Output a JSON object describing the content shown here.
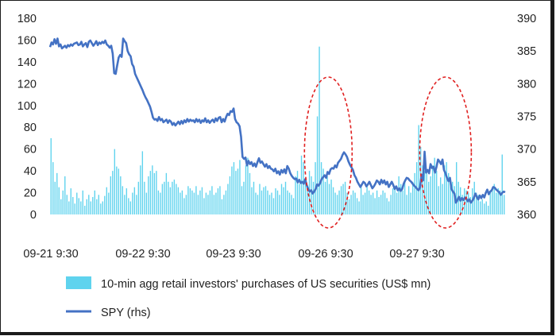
{
  "chart_data": {
    "type": "bar",
    "title": "",
    "x_ticks": [
      "09-21 9:30",
      "09-22 9:30",
      "09-23 9:30",
      "09-26 9:30",
      "09-27 9:30"
    ],
    "y_left": {
      "ticks": [
        0,
        20,
        40,
        60,
        80,
        100,
        120,
        140,
        160,
        180
      ],
      "range": [
        0,
        180
      ]
    },
    "y_right": {
      "ticks": [
        360,
        365,
        370,
        375,
        380,
        385,
        390
      ],
      "range": [
        360,
        390
      ]
    },
    "grid": false,
    "legend_position": "bottom",
    "colors": {
      "bars": "#5fd3ee",
      "line": "#4472c4",
      "annotation": "#e02020"
    },
    "series": [
      {
        "name": "10-min agg retail investors' purchases of US securities (US$ mn)",
        "type": "bar",
        "axis": "left",
        "values": [
          70,
          48,
          30,
          38,
          25,
          14,
          22,
          35,
          18,
          12,
          24,
          16,
          10,
          20,
          15,
          12,
          22,
          8,
          14,
          18,
          12,
          16,
          22,
          14,
          18,
          10,
          12,
          17,
          25,
          20,
          35,
          40,
          60,
          44,
          42,
          35,
          26,
          18,
          24,
          15,
          12,
          20,
          25,
          18,
          30,
          45,
          58,
          30,
          20,
          35,
          40,
          45,
          38,
          40,
          22,
          20,
          28,
          30,
          38,
          30,
          25,
          30,
          32,
          28,
          25,
          20,
          22,
          15,
          18,
          26,
          24,
          22,
          20,
          26,
          18,
          22,
          25,
          15,
          20,
          18,
          22,
          26,
          18,
          20,
          24,
          26,
          14,
          18,
          22,
          28,
          35,
          44,
          48,
          40,
          42,
          50,
          26,
          30,
          45,
          52,
          38,
          25,
          30,
          20,
          18,
          28,
          22,
          25,
          26,
          22,
          18,
          20,
          15,
          24,
          22,
          18,
          28,
          25,
          30,
          22,
          20,
          18,
          15,
          35,
          40,
          28,
          54,
          48,
          32,
          25,
          40,
          35,
          30,
          48,
          90,
          154,
          48,
          42,
          30,
          35,
          28,
          32,
          25,
          20,
          18,
          22,
          26,
          28,
          30,
          20,
          14,
          18,
          22,
          20,
          15,
          12,
          25,
          18,
          20,
          26,
          22,
          18,
          20,
          15,
          22,
          16,
          18,
          22,
          20,
          15,
          12,
          18,
          24,
          26,
          20,
          35,
          28,
          22,
          30,
          18,
          26,
          20,
          30,
          38,
          48,
          82,
          62,
          45,
          40,
          38,
          30,
          35,
          45,
          52,
          40,
          26,
          34,
          28,
          45,
          48,
          38,
          28,
          30,
          26,
          48,
          30,
          25,
          18,
          24,
          22,
          20,
          16,
          24,
          30,
          20,
          18,
          12,
          14,
          10,
          12,
          8,
          20,
          25,
          28,
          20,
          24,
          22,
          55,
          18
        ]
      },
      {
        "name": "SPY (rhs)",
        "type": "line",
        "axis": "right",
        "values": [
          385.6,
          386.3,
          386.0,
          386.8,
          386.1,
          386.9,
          385.7,
          386.0,
          385.4,
          385.6,
          385.8,
          385.5,
          385.9,
          385.7,
          386.0,
          385.8,
          386.1,
          386.2,
          386.3,
          385.9,
          386.0,
          386.4,
          385.7,
          386.0,
          386.2,
          385.6,
          386.4,
          386.6,
          386.2,
          385.8,
          386.1,
          386.5,
          385.9,
          386.3,
          386.1,
          386.4,
          386.2,
          386.6,
          386.0,
          385.8,
          385.5,
          385.8,
          384.6,
          381.6,
          381.5,
          382.8,
          384.0,
          384.4,
          384.1,
          386.9,
          386.5,
          386.2,
          385.0,
          384.5,
          384.2,
          383.0,
          382.6,
          381.5,
          381.0,
          380.5,
          380.0,
          379.5,
          379.0,
          378.4,
          377.9,
          377.5,
          377.0,
          376.5,
          375.7,
          374.8,
          374.5,
          374.6,
          374.3,
          374.9,
          374.4,
          374.6,
          374.1,
          374.3,
          374.5,
          374.0,
          374.4,
          374.2,
          373.7,
          374.0,
          373.6,
          373.9,
          374.2,
          373.8,
          374.3,
          373.9,
          374.4,
          374.1,
          374.6,
          374.2,
          374.5,
          374.3,
          374.4,
          374.1,
          374.6,
          374.2,
          374.5,
          374.0,
          374.4,
          374.2,
          374.7,
          374.1,
          374.4,
          374.0,
          374.3,
          374.5,
          374.1,
          374.7,
          374.3,
          374.8,
          374.9,
          374.1,
          374.6,
          374.2,
          374.9,
          375.4,
          375.2,
          375.8,
          375.7,
          376.2,
          374.6,
          374.1,
          373.9,
          373.5,
          371.9,
          368.8,
          368.5,
          368.7,
          367.5,
          368.2,
          367.7,
          368.0,
          367.4,
          367.8,
          367.3,
          368.0,
          368.6,
          367.9,
          368.1,
          367.7,
          367.3,
          367.7,
          367.1,
          367.4,
          367.0,
          366.9,
          366.6,
          367.0,
          366.3,
          366.6,
          366.1,
          366.8,
          366.4,
          366.9,
          366.3,
          367.4,
          367.0,
          366.3,
          365.9,
          365.6,
          365.4,
          365.5,
          364.9,
          365.3,
          364.8,
          365.0,
          364.7,
          365.4,
          364.5,
          363.9,
          363.5,
          363.7,
          363.2,
          363.5,
          363.9,
          364.6,
          364.4,
          364.8,
          365.4,
          365.7,
          366.0,
          365.6,
          366.5,
          366.2,
          366.9,
          367.1,
          367.0,
          367.5,
          367.2,
          367.9,
          368.2,
          368.5,
          369.1,
          369.5,
          369.2,
          368.8,
          368.1,
          367.6,
          367.2,
          366.8,
          366.0,
          365.6,
          365.0,
          364.6,
          364.2,
          364.6,
          365.0,
          364.8,
          364.3,
          364.6,
          365.0,
          364.5,
          364.0,
          364.3,
          364.7,
          365.2,
          365.0,
          364.6,
          365.3,
          364.8,
          365.2,
          364.6,
          365.0,
          364.2,
          364.6,
          365.0,
          364.5,
          363.9,
          364.3,
          363.7,
          364.0,
          363.6,
          363.9,
          364.7,
          365.2,
          365.6,
          365.5,
          365.2,
          365.0,
          364.7,
          364.4,
          364.2,
          363.9,
          363.7,
          364.2,
          366.1,
          365.2,
          369.6,
          366.4,
          366.8,
          366.3,
          367.7,
          367.1,
          367.3,
          366.4,
          367.3,
          368.4,
          368.1,
          367.7,
          368.4,
          366.8,
          366.3,
          365.6,
          365.1,
          365.6,
          363.9,
          363.5,
          363.2,
          361.8,
          362.2,
          362.7,
          362.1,
          362.5,
          362.2,
          362.6,
          362.4,
          362.0,
          362.3,
          361.8,
          362.1,
          362.5,
          363.2,
          362.7,
          362.3,
          362.9,
          362.5,
          363.0,
          362.6,
          363.3,
          363.8,
          363.1,
          363.5,
          363.7,
          364.2,
          364.1,
          363.8,
          363.6,
          363.4,
          363.0,
          363.3,
          363.5,
          363.4
        ]
      }
    ],
    "annotations": [
      {
        "type": "ellipse",
        "label": "",
        "x_range_index": [
          128,
          152
        ]
      },
      {
        "type": "ellipse",
        "label": "",
        "x_range_index": [
          186,
          212
        ]
      }
    ]
  }
}
